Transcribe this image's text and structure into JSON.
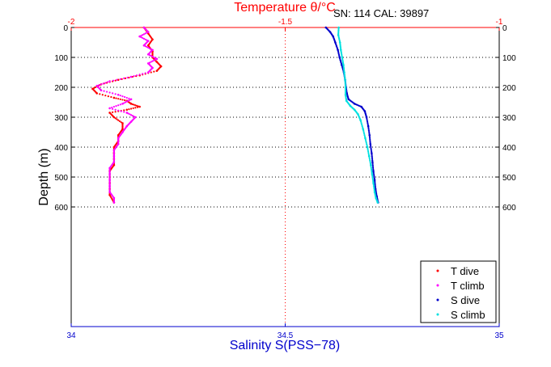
{
  "chart_data": {
    "type": "scatter",
    "title": "Temperature θ/°C",
    "annotation": "SN: 114  CAL: 39897",
    "ylabel": "Depth (m)",
    "x_top": {
      "label": "Temperature θ/°C",
      "range": [
        -2,
        -1
      ],
      "ticks": [
        "-2",
        "-1.5",
        "-1"
      ],
      "color": "#ff0000"
    },
    "x_bottom": {
      "label": "Salinity S(PSS−78)",
      "range": [
        34,
        35
      ],
      "ticks": [
        "34",
        "34.5",
        "35"
      ],
      "color": "#0000cc"
    },
    "y": {
      "range": [
        0,
        1000
      ],
      "reversed": true,
      "ticks": [
        "0",
        "100",
        "200",
        "300",
        "400",
        "500",
        "600"
      ],
      "gridlines": [
        0,
        100,
        200,
        300,
        400,
        500,
        600
      ]
    },
    "series": [
      {
        "name": "T dive",
        "color": "#ff0000",
        "axis": "top",
        "points": [
          [
            -1.83,
            0
          ],
          [
            -1.82,
            20
          ],
          [
            -1.81,
            40
          ],
          [
            -1.82,
            60
          ],
          [
            -1.81,
            80
          ],
          [
            -1.81,
            100
          ],
          [
            -1.8,
            115
          ],
          [
            -1.79,
            130
          ],
          [
            -1.8,
            145
          ],
          [
            -1.84,
            160
          ],
          [
            -1.89,
            175
          ],
          [
            -1.93,
            190
          ],
          [
            -1.95,
            205
          ],
          [
            -1.94,
            220
          ],
          [
            -1.9,
            235
          ],
          [
            -1.87,
            245
          ],
          [
            -1.86,
            255
          ],
          [
            -1.84,
            265
          ],
          [
            -1.87,
            275
          ],
          [
            -1.91,
            285
          ],
          [
            -1.9,
            300
          ],
          [
            -1.88,
            320
          ],
          [
            -1.88,
            340
          ],
          [
            -1.89,
            360
          ],
          [
            -1.89,
            380
          ],
          [
            -1.9,
            400
          ],
          [
            -1.9,
            420
          ],
          [
            -1.9,
            440
          ],
          [
            -1.9,
            460
          ],
          [
            -1.91,
            480
          ],
          [
            -1.91,
            500
          ],
          [
            -1.91,
            520
          ],
          [
            -1.91,
            540
          ],
          [
            -1.91,
            560
          ],
          [
            -1.9,
            585
          ]
        ]
      },
      {
        "name": "T climb",
        "color": "#ff00ff",
        "axis": "top",
        "points": [
          [
            -1.83,
            0
          ],
          [
            -1.82,
            15
          ],
          [
            -1.84,
            30
          ],
          [
            -1.82,
            45
          ],
          [
            -1.83,
            60
          ],
          [
            -1.81,
            75
          ],
          [
            -1.82,
            90
          ],
          [
            -1.8,
            105
          ],
          [
            -1.82,
            120
          ],
          [
            -1.81,
            135
          ],
          [
            -1.82,
            150
          ],
          [
            -1.86,
            165
          ],
          [
            -1.91,
            180
          ],
          [
            -1.94,
            195
          ],
          [
            -1.93,
            210
          ],
          [
            -1.89,
            225
          ],
          [
            -1.86,
            240
          ],
          [
            -1.88,
            255
          ],
          [
            -1.91,
            270
          ],
          [
            -1.87,
            285
          ],
          [
            -1.85,
            300
          ],
          [
            -1.86,
            315
          ],
          [
            -1.87,
            330
          ],
          [
            -1.88,
            350
          ],
          [
            -1.89,
            370
          ],
          [
            -1.89,
            390
          ],
          [
            -1.9,
            410
          ],
          [
            -1.9,
            430
          ],
          [
            -1.9,
            450
          ],
          [
            -1.91,
            470
          ],
          [
            -1.91,
            490
          ],
          [
            -1.91,
            510
          ],
          [
            -1.91,
            530
          ],
          [
            -1.91,
            550
          ],
          [
            -1.9,
            570
          ],
          [
            -1.9,
            585
          ]
        ]
      },
      {
        "name": "S dive",
        "color": "#0000cc",
        "axis": "bottom",
        "points": [
          [
            34.595,
            0
          ],
          [
            34.605,
            15
          ],
          [
            34.612,
            30
          ],
          [
            34.617,
            50
          ],
          [
            34.623,
            75
          ],
          [
            34.627,
            100
          ],
          [
            34.632,
            125
          ],
          [
            34.637,
            150
          ],
          [
            34.64,
            175
          ],
          [
            34.642,
            200
          ],
          [
            34.644,
            220
          ],
          [
            34.648,
            240
          ],
          [
            34.662,
            255
          ],
          [
            34.678,
            265
          ],
          [
            34.686,
            280
          ],
          [
            34.69,
            300
          ],
          [
            34.694,
            330
          ],
          [
            34.697,
            360
          ],
          [
            34.699,
            390
          ],
          [
            34.702,
            420
          ],
          [
            34.704,
            450
          ],
          [
            34.706,
            480
          ],
          [
            34.709,
            510
          ],
          [
            34.711,
            540
          ],
          [
            34.714,
            565
          ],
          [
            34.717,
            585
          ]
        ]
      },
      {
        "name": "S climb",
        "color": "#00e0e0",
        "axis": "bottom",
        "points": [
          [
            34.625,
            0
          ],
          [
            34.624,
            25
          ],
          [
            34.628,
            50
          ],
          [
            34.63,
            75
          ],
          [
            34.633,
            100
          ],
          [
            34.636,
            125
          ],
          [
            34.638,
            150
          ],
          [
            34.64,
            175
          ],
          [
            34.641,
            200
          ],
          [
            34.641,
            225
          ],
          [
            34.643,
            245
          ],
          [
            34.652,
            262
          ],
          [
            34.662,
            275
          ],
          [
            34.67,
            290
          ],
          [
            34.676,
            310
          ],
          [
            34.682,
            340
          ],
          [
            34.687,
            370
          ],
          [
            34.692,
            400
          ],
          [
            34.696,
            430
          ],
          [
            34.7,
            460
          ],
          [
            34.703,
            490
          ],
          [
            34.706,
            520
          ],
          [
            34.709,
            550
          ],
          [
            34.712,
            570
          ],
          [
            34.716,
            585
          ]
        ]
      }
    ],
    "legend": {
      "placement": "bottom-right",
      "entries": [
        "T dive",
        "T climb",
        "S dive",
        "S climb"
      ]
    }
  }
}
